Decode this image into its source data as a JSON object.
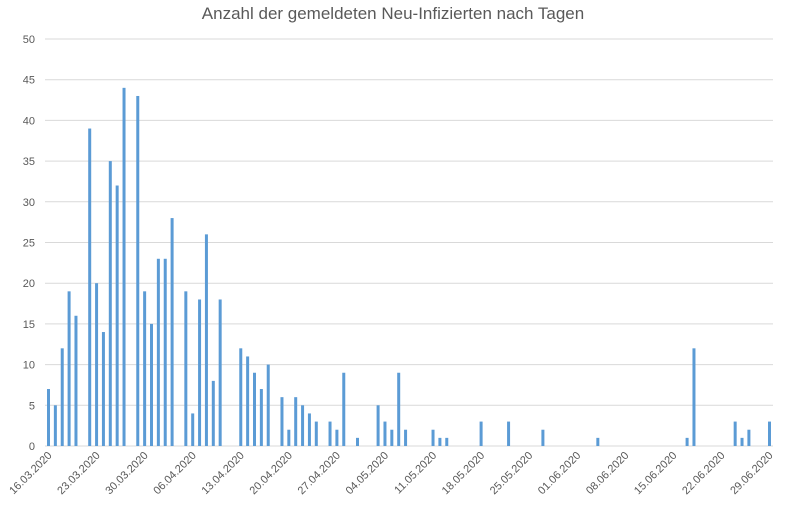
{
  "chart_data": {
    "type": "bar",
    "title": "Anzahl der gemeldeten Neu-Infizierten nach Tagen",
    "categories": [
      "16.03.2020",
      null,
      null,
      null,
      null,
      null,
      null,
      "23.03.2020",
      null,
      null,
      null,
      null,
      null,
      null,
      "30.03.2020",
      null,
      null,
      null,
      null,
      null,
      null,
      "06.04.2020",
      null,
      null,
      null,
      null,
      null,
      null,
      "13.04.2020",
      null,
      null,
      null,
      null,
      null,
      null,
      "20.04.2020",
      null,
      null,
      null,
      null,
      null,
      null,
      "27.04.2020",
      null,
      null,
      null,
      null,
      null,
      null,
      "04.05.2020",
      null,
      null,
      null,
      null,
      null,
      null,
      "11.05.2020",
      null,
      null,
      null,
      null,
      null,
      null,
      "18.05.2020",
      null,
      null,
      null,
      null,
      null,
      null,
      "25.05.2020",
      null,
      null,
      null,
      null,
      null,
      null,
      "01.06.2020",
      null,
      null,
      null,
      null,
      null,
      null,
      "08.06.2020",
      null,
      null,
      null,
      null,
      null,
      null,
      "15.06.2020",
      null,
      null,
      null,
      null,
      null,
      null,
      "22.06.2020",
      null,
      null,
      null,
      null,
      null,
      null,
      "29.06.2020"
    ],
    "values": [
      7,
      5,
      12,
      19,
      16,
      0,
      39,
      20,
      14,
      35,
      32,
      44,
      0,
      43,
      19,
      15,
      23,
      23,
      28,
      0,
      19,
      4,
      18,
      26,
      8,
      18,
      0,
      0,
      12,
      11,
      9,
      7,
      10,
      0,
      6,
      2,
      6,
      5,
      4,
      3,
      0,
      3,
      2,
      9,
      0,
      1,
      0,
      0,
      5,
      3,
      2,
      9,
      2,
      0,
      0,
      0,
      2,
      1,
      1,
      0,
      0,
      0,
      0,
      3,
      0,
      0,
      0,
      3,
      0,
      0,
      0,
      0,
      2,
      0,
      0,
      0,
      0,
      0,
      0,
      0,
      1,
      0,
      0,
      0,
      0,
      0,
      0,
      0,
      0,
      0,
      0,
      0,
      0,
      1,
      12,
      0,
      0,
      0,
      0,
      0,
      3,
      1,
      2,
      0,
      0,
      3
    ],
    "color": "#5b9bd5",
    "ylim": [
      0,
      50
    ],
    "yticks": [
      0,
      5,
      10,
      15,
      20,
      25,
      30,
      35,
      40,
      45,
      50
    ],
    "grid": true
  }
}
